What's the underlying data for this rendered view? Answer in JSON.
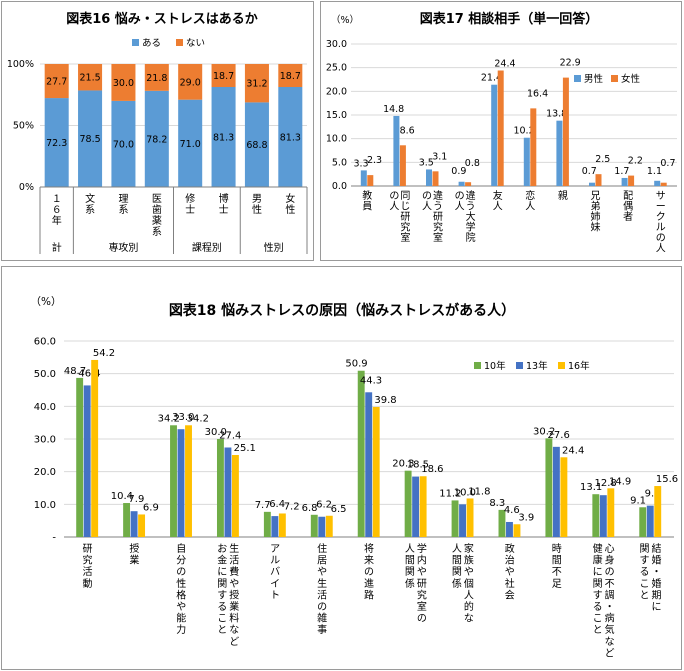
{
  "chart_data": [
    {
      "id": "c16",
      "type": "bar",
      "stacked": true,
      "percent": true,
      "title": "図表16 悩み・ストレスはあるか",
      "ylim": [
        0,
        100
      ],
      "yticks": [
        "0%",
        "50%",
        "100%"
      ],
      "categories": [
        "１６年",
        "文系",
        "理系",
        "医歯薬系",
        "修士",
        "博士",
        "男性",
        "女性"
      ],
      "groups": [
        {
          "label": "計",
          "categories": [
            "１６年"
          ]
        },
        {
          "label": "専攻別",
          "categories": [
            "文系",
            "理系",
            "医歯薬系"
          ]
        },
        {
          "label": "課程別",
          "categories": [
            "修士",
            "博士"
          ]
        },
        {
          "label": "性別",
          "categories": [
            "男性",
            "女性"
          ]
        }
      ],
      "series": [
        {
          "name": "ある",
          "color": "#5b9bd5",
          "values": [
            72.3,
            78.5,
            70.0,
            78.2,
            71.0,
            81.3,
            68.8,
            81.3
          ]
        },
        {
          "name": "ない",
          "color": "#ed7d31",
          "values": [
            27.7,
            21.5,
            30.0,
            21.8,
            29.0,
            18.7,
            31.2,
            18.7
          ]
        }
      ],
      "value_labels": [
        [
          "72.3",
          "78.5",
          "70.0",
          "78.2",
          "71.0",
          "81.3",
          "68.8",
          "81.3"
        ],
        [
          "27.7",
          "21.5",
          "30.0",
          "21.8",
          "29.0",
          "18.7",
          "31.2",
          "18.7"
        ]
      ],
      "legend": "top"
    },
    {
      "id": "c17",
      "type": "bar",
      "title": "図表17 相談相手（単一回答）",
      "ylabel": "（%）",
      "ylim": [
        0,
        30
      ],
      "yticks": [
        "0.0",
        "5.0",
        "10.0",
        "15.0",
        "20.0",
        "25.0",
        "30.0"
      ],
      "categories": [
        "教員",
        "同じ研究室の人",
        "違う研究室の人",
        "違う大学院の人",
        "友人",
        "恋人",
        "親",
        "兄弟姉妹",
        "配偶者",
        "サークルの人"
      ],
      "category_lines": [
        [
          "教員"
        ],
        [
          "同じ研究室",
          "の人"
        ],
        [
          "違う研究室",
          "の人"
        ],
        [
          "違う大学院",
          "の人"
        ],
        [
          "友人"
        ],
        [
          "恋人"
        ],
        [
          "親"
        ],
        [
          "兄弟姉妹"
        ],
        [
          "配偶者"
        ],
        [
          "サークルの人"
        ]
      ],
      "series": [
        {
          "name": "男性",
          "color": "#5b9bd5",
          "values": [
            3.3,
            14.8,
            3.5,
            0.9,
            21.4,
            10.2,
            13.8,
            0.7,
            1.7,
            1.1
          ]
        },
        {
          "name": "女性",
          "color": "#ed7d31",
          "values": [
            2.3,
            8.6,
            3.1,
            0.8,
            24.4,
            16.4,
            22.9,
            2.5,
            2.2,
            0.7
          ]
        }
      ],
      "value_labels": [
        [
          "3.3",
          "14.8",
          "3.5",
          "0.9",
          "21.4",
          "10.2",
          "13.8",
          "0.7",
          "1.7",
          "1.1"
        ],
        [
          "2.3",
          "8.6",
          "3.1",
          "0.8",
          "24.4",
          "16.4",
          "22.9",
          "2.5",
          "2.2",
          "0.7"
        ]
      ],
      "legend": "right"
    },
    {
      "id": "c18",
      "type": "bar",
      "title": "図表18 悩みストレスの原因（悩みストレスがある人）",
      "ylabel": "（%）",
      "ylim": [
        0,
        60
      ],
      "yticks": [
        "-",
        "10.0",
        "20.0",
        "30.0",
        "40.0",
        "50.0",
        "60.0"
      ],
      "categories": [
        "研究活動",
        "授業",
        "自分の性格や能力",
        "生活費や授業料などお金に関すること",
        "アルバイト",
        "住居や生活の雑事",
        "将来の進路",
        "学内や研究室の人間関係",
        "家族や個人的な人間関係",
        "政治や社会",
        "時間不足",
        "心身の不調・病気など健康に関すること",
        "結婚・婚期に関すること"
      ],
      "category_lines": [
        [
          "研究活動"
        ],
        [
          "授業"
        ],
        [
          "自分の性格や能力"
        ],
        [
          "生活費や授業料など",
          "お金に関すること"
        ],
        [
          "アルバイト"
        ],
        [
          "住居や生活の雑事"
        ],
        [
          "将来の進路"
        ],
        [
          "学内や研究室の",
          "人間関係"
        ],
        [
          "家族や個人的な",
          "人間関係"
        ],
        [
          "政治や社会"
        ],
        [
          "時間不足"
        ],
        [
          "心身の不調・病気など",
          "健康に関すること"
        ],
        [
          "結婚・婚期に",
          "関すること"
        ]
      ],
      "series": [
        {
          "name": "10年",
          "color": "#70ad47",
          "values": [
            48.7,
            10.4,
            34.2,
            30.0,
            7.7,
            6.8,
            50.9,
            20.3,
            11.2,
            8.3,
            30.2,
            13.1,
            9.1
          ]
        },
        {
          "name": "13年",
          "color": "#4472c4",
          "values": [
            46.4,
            7.9,
            33.0,
            27.4,
            6.4,
            6.2,
            44.3,
            18.5,
            10.0,
            4.6,
            27.6,
            12.8,
            9.6
          ]
        },
        {
          "name": "16年",
          "color": "#ffc000",
          "values": [
            54.2,
            6.9,
            34.2,
            25.1,
            7.2,
            6.5,
            39.8,
            18.6,
            11.8,
            3.9,
            24.4,
            14.9,
            15.6
          ]
        }
      ],
      "value_labels": [
        [
          "48.7",
          "10.4",
          "34.2",
          "30.0",
          "7.7",
          "6.8",
          "50.9",
          "20.3",
          "11.2",
          "8.3",
          "30.2",
          "13.1",
          "9.1"
        ],
        [
          "46.4",
          "7.9",
          "33.0",
          "27.4",
          "6.4",
          "6.2",
          "44.3",
          "18.5",
          "10.0",
          "4.6",
          "27.6",
          "12.8",
          "9.6"
        ],
        [
          "54.2",
          "6.9",
          "34.2",
          "25.1",
          "7.2",
          "6.5",
          "39.8",
          "18.6",
          "11.8",
          "3.9",
          "24.4",
          "14.9",
          "15.6"
        ]
      ],
      "legend": "top-right"
    }
  ]
}
